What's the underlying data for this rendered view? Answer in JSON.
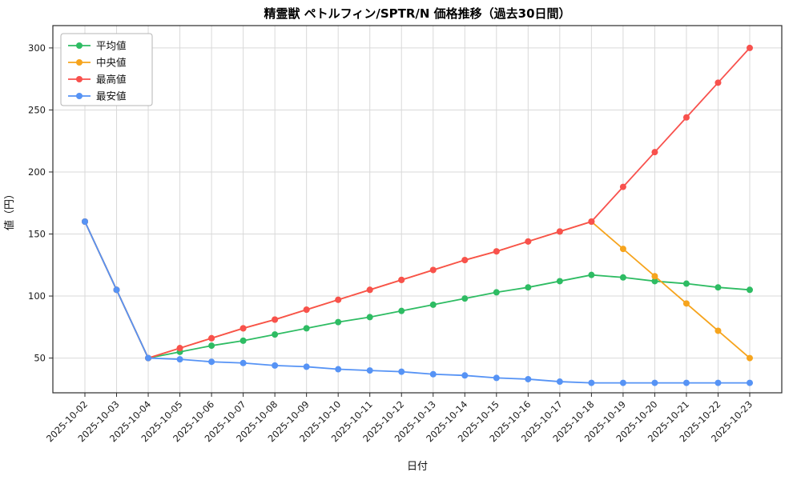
{
  "chart_data": {
    "type": "line",
    "title": "精霊獣 ペトルフィン/SPTR/N 価格推移（過去30日間）",
    "xlabel": "日付",
    "ylabel": "値（円）",
    "grid": true,
    "legend_position": "upper-left",
    "yticks": [
      50,
      100,
      150,
      200,
      250,
      300
    ],
    "ylim": [
      22,
      318
    ],
    "categories": [
      "2025-10-02",
      "2025-10-03",
      "2025-10-04",
      "2025-10-05",
      "2025-10-06",
      "2025-10-07",
      "2025-10-08",
      "2025-10-09",
      "2025-10-10",
      "2025-10-11",
      "2025-10-12",
      "2025-10-13",
      "2025-10-14",
      "2025-10-15",
      "2025-10-16",
      "2025-10-17",
      "2025-10-18",
      "2025-10-19",
      "2025-10-20",
      "2025-10-21",
      "2025-10-22",
      "2025-10-23"
    ],
    "series": [
      {
        "name": "平均値",
        "color": "#2ebc63",
        "values": [
          160,
          105,
          50,
          55,
          60,
          64,
          69,
          74,
          79,
          83,
          88,
          93,
          98,
          103,
          107,
          112,
          117,
          115,
          112,
          110,
          107,
          105
        ]
      },
      {
        "name": "中央値",
        "color": "#f6a41d",
        "values": [
          160,
          105,
          50,
          58,
          66,
          74,
          81,
          89,
          97,
          105,
          113,
          121,
          129,
          136,
          144,
          152,
          160,
          138,
          116,
          94,
          72,
          50
        ]
      },
      {
        "name": "最高値",
        "color": "#f8514d",
        "values": [
          160,
          105,
          50,
          58,
          66,
          74,
          81,
          89,
          97,
          105,
          113,
          121,
          129,
          136,
          144,
          152,
          160,
          188,
          216,
          244,
          272,
          300
        ]
      },
      {
        "name": "最安値",
        "color": "#5693f5",
        "values": [
          160,
          105,
          50,
          49,
          47,
          46,
          44,
          43,
          41,
          40,
          39,
          37,
          36,
          34,
          33,
          31,
          30,
          30,
          30,
          30,
          30,
          30
        ]
      }
    ]
  }
}
